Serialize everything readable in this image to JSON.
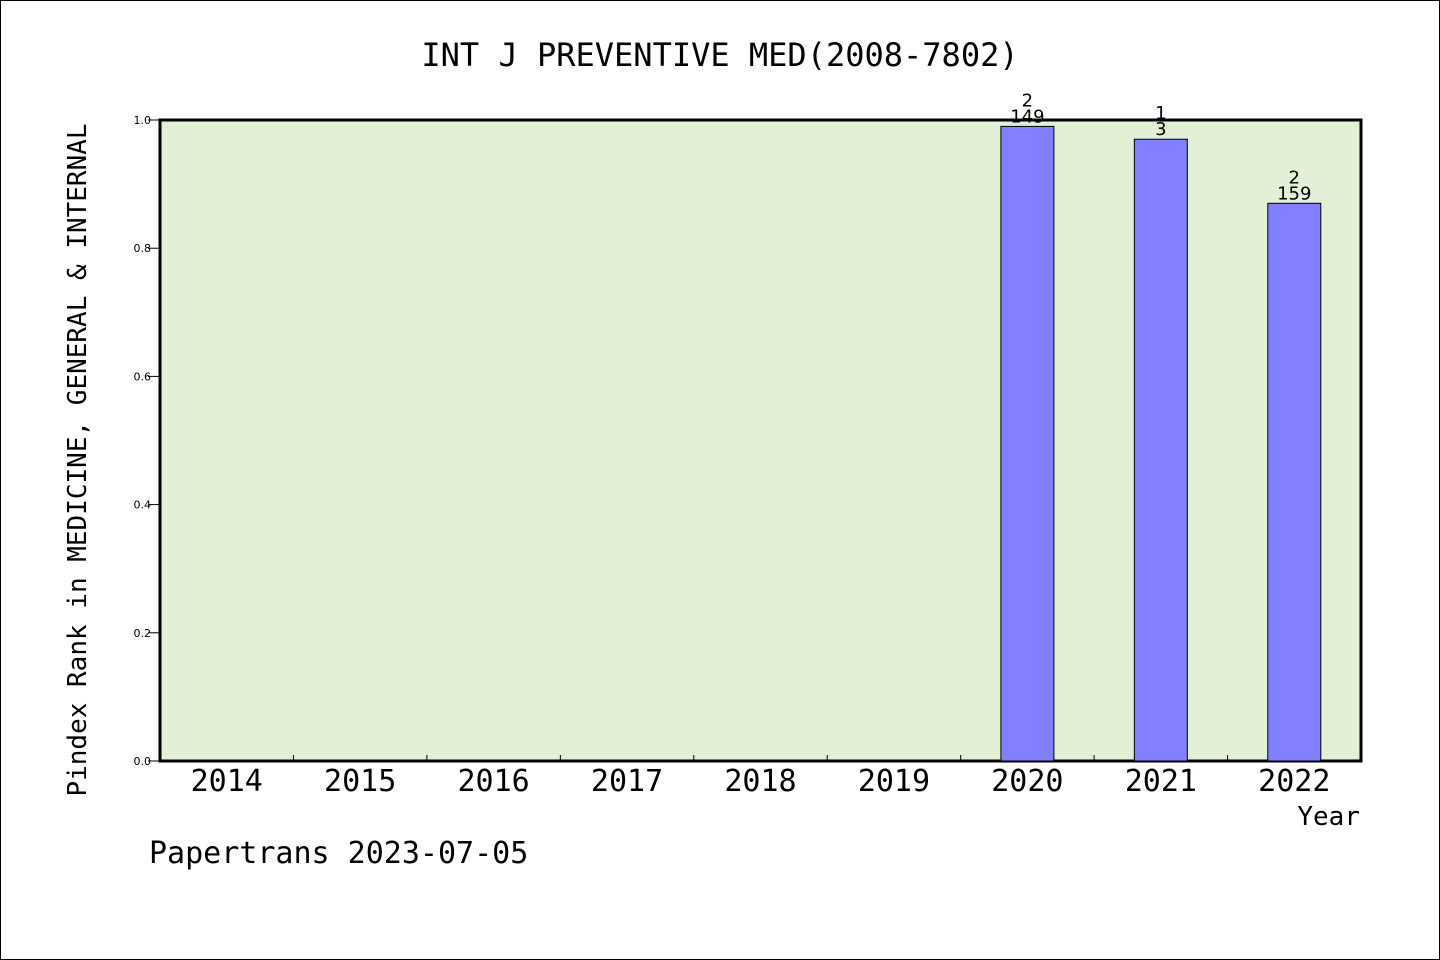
{
  "chart_data": {
    "type": "bar",
    "title": "INT J PREVENTIVE MED(2008-7802)",
    "xlabel": "Year",
    "ylabel": "Pindex Rank in MEDICINE, GENERAL & INTERNAL",
    "categories": [
      "2014",
      "2015",
      "2016",
      "2017",
      "2018",
      "2019",
      "2020",
      "2021",
      "2022"
    ],
    "values": [
      null,
      null,
      null,
      null,
      null,
      null,
      0.99,
      0.97,
      0.87
    ],
    "annotations": [
      null,
      null,
      null,
      null,
      null,
      null,
      [
        "2",
        "149"
      ],
      [
        "1",
        "3"
      ],
      [
        "2",
        "159"
      ]
    ],
    "ylim": [
      0,
      1.0
    ],
    "yticks": [
      "0.0",
      "0.2",
      "0.4",
      "0.6",
      "0.8",
      "1.0"
    ],
    "grid": false,
    "colors": {
      "plot_bg": "#e2f0d6",
      "bar": "#8080ff",
      "axis": "#000000"
    }
  },
  "footer": "Papertrans 2023-07-05"
}
